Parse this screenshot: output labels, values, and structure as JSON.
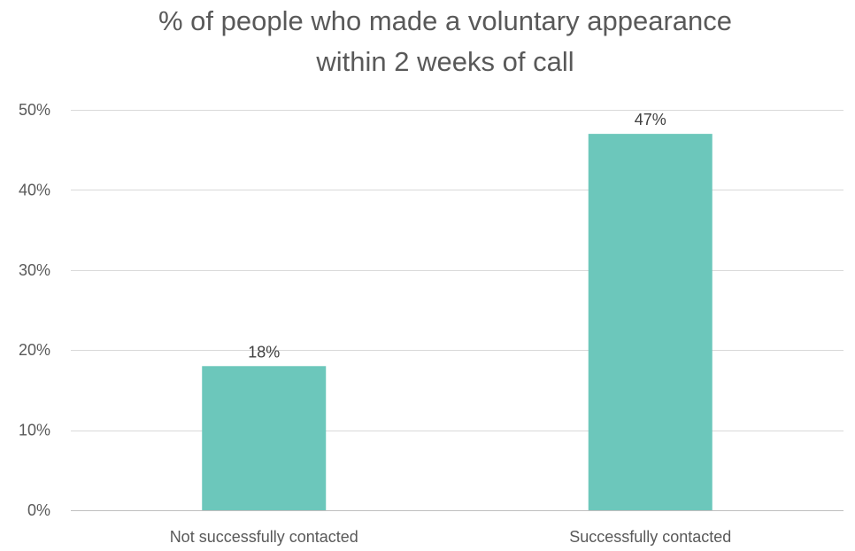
{
  "chart_data": {
    "type": "bar",
    "title_lines": [
      "% of people who made a voluntary appearance",
      "within 2 weeks of call"
    ],
    "categories": [
      "Not successfully contacted",
      "Successfully contacted"
    ],
    "values": [
      18,
      47
    ],
    "value_labels": [
      "18%",
      "47%"
    ],
    "y_ticks": [
      {
        "value": 0,
        "label": "0%"
      },
      {
        "value": 10,
        "label": "10%"
      },
      {
        "value": 20,
        "label": "20%"
      },
      {
        "value": 30,
        "label": "30%"
      },
      {
        "value": 40,
        "label": "40%"
      },
      {
        "value": 50,
        "label": "50%"
      }
    ],
    "ylim": [
      0,
      50
    ],
    "grid": true,
    "legend": "none",
    "colors": {
      "bar": "#6cc7bb"
    }
  }
}
